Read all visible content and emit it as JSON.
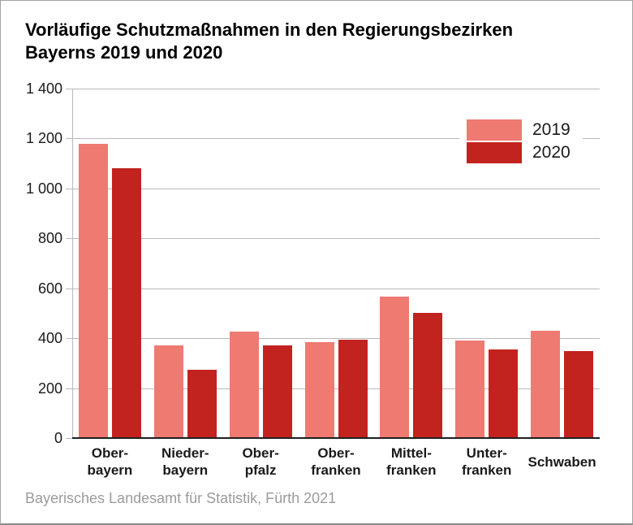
{
  "title_lines": [
    "Vorläufige Schutzmaßnahmen in den Regierungsbezirken",
    "Bayerns 2019 und 2020"
  ],
  "source": "Bayerisches Landesamt für Statistik, Fürth 2021",
  "colors": {
    "series_2019": "#ee7a71",
    "series_2020": "#c2231f",
    "grid": "#b9b9b9",
    "baseline": "#1f1f1f",
    "text": "#1a1a1a",
    "source_text": "#9b9b9b",
    "background": "#ffffff"
  },
  "chart_data": {
    "type": "bar",
    "title": "Vorläufige Schutzmaßnahmen in den Regierungsbezirken Bayerns 2019 und 2020",
    "categories": [
      "Oberbayern",
      "Niederbayern",
      "Oberpfalz",
      "Oberfranken",
      "Mittelfranken",
      "Unterfranken",
      "Schwaben"
    ],
    "category_label_lines": [
      [
        "Ober-",
        "bayern"
      ],
      [
        "Nieder-",
        "bayern"
      ],
      [
        "Ober-",
        "pfalz"
      ],
      [
        "Ober-",
        "franken"
      ],
      [
        "Mittel-",
        "franken"
      ],
      [
        "Unter-",
        "franken"
      ],
      [
        "Schwaben"
      ]
    ],
    "series": [
      {
        "name": "2019",
        "color": "#ee7a71",
        "values": [
          1180,
          370,
          425,
          385,
          565,
          390,
          430
        ]
      },
      {
        "name": "2020",
        "color": "#c2231f",
        "values": [
          1080,
          275,
          370,
          395,
          500,
          355,
          350
        ]
      }
    ],
    "ylim": [
      0,
      1400
    ],
    "ytick_step": 200,
    "ytick_labels": [
      "0",
      "200",
      "400",
      "600",
      "800",
      "1 000",
      "1 200",
      "1 400"
    ],
    "grid": true,
    "legend_position": "top-right",
    "xlabel": "",
    "ylabel": ""
  }
}
